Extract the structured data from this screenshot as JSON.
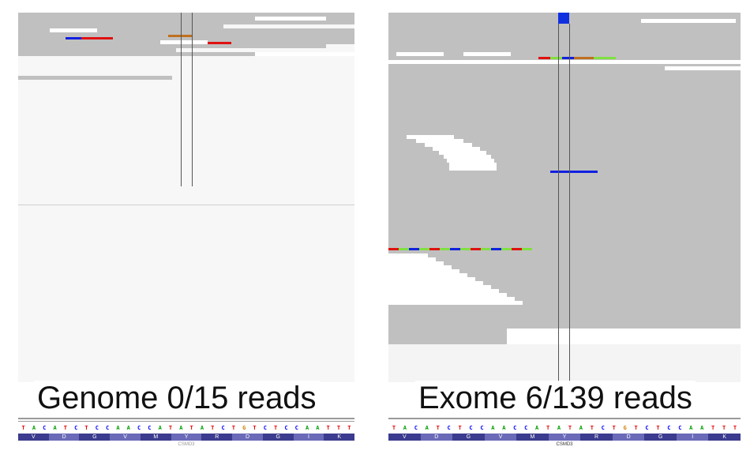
{
  "panels": [
    {
      "id": "left",
      "label": "Genome 0/15 reads",
      "sequence": [
        "T",
        "A",
        "C",
        "A",
        "T",
        "C",
        "T",
        "C",
        "C",
        "A",
        "A",
        "C",
        "C",
        "A",
        "T",
        "A",
        "T",
        "A",
        "T",
        "C",
        "T",
        "G",
        "T",
        "C",
        "T",
        "C",
        "C",
        "A",
        "A",
        "T",
        "T",
        "T"
      ],
      "amino_acids": [
        "V",
        "D",
        "G",
        "V",
        "M",
        "Y",
        "R",
        "D",
        "G",
        "I",
        "K"
      ],
      "gene": "CSMD3"
    },
    {
      "id": "right",
      "label": "Exome 6/139 reads",
      "sequence": [
        "T",
        "A",
        "C",
        "A",
        "T",
        "C",
        "T",
        "C",
        "C",
        "A",
        "A",
        "C",
        "C",
        "A",
        "T",
        "A",
        "T",
        "A",
        "T",
        "C",
        "T",
        "G",
        "T",
        "C",
        "T",
        "C",
        "C",
        "A",
        "A",
        "T",
        "T",
        "T"
      ],
      "amino_acids": [
        "V",
        "D",
        "G",
        "V",
        "M",
        "Y",
        "R",
        "D",
        "G",
        "I",
        "K"
      ],
      "gene": "CSMD3"
    }
  ],
  "colors": {
    "A": "#00a000",
    "C": "#0000ff",
    "G": "#d08000",
    "T": "#e00000",
    "aa_odd": "#3b3b8f",
    "aa_even": "#6a6ab8",
    "read": "#c0c0c0",
    "mismatch_red": "#e01010",
    "mismatch_blue": "#1020e0",
    "mismatch_green": "#80e040",
    "mismatch_orange": "#c07020"
  }
}
